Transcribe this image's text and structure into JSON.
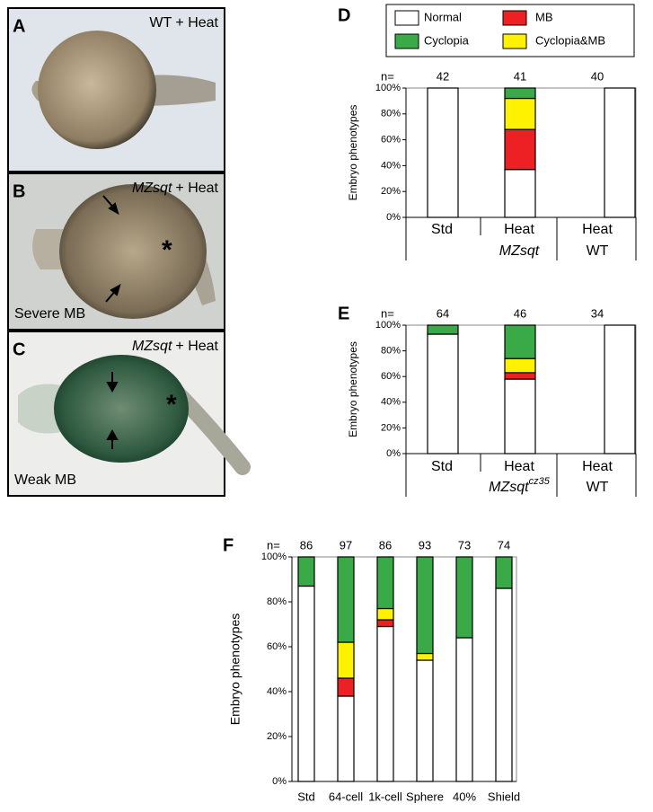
{
  "panels": [
    {
      "letter": "A",
      "label": "WT + Heat"
    },
    {
      "letter": "B",
      "genotype": "MZsqt",
      "label": "+ Heat",
      "caption": "Severe MB",
      "marker": "*"
    },
    {
      "letter": "C",
      "genotype": "MZsqt",
      "label": "+ Heat",
      "caption": "Weak MB",
      "marker": "*"
    }
  ],
  "chart_data": [
    {
      "type": "stacked_bar",
      "panel": "D",
      "ylabel": "Embryo phenotypes",
      "n_label": "n=",
      "n": [
        42,
        41,
        40
      ],
      "categories": [
        "Std",
        "Heat",
        "Heat"
      ],
      "group_labels": [
        "MZsqt",
        "WT"
      ],
      "series": [
        {
          "name": "Normal",
          "color": "#ffffff",
          "values": [
            100,
            37,
            100
          ]
        },
        {
          "name": "MB",
          "color": "#ed2124",
          "values": [
            0,
            31,
            0
          ]
        },
        {
          "name": "Cyclopia&MB",
          "color": "#fff200",
          "values": [
            0,
            24,
            0
          ]
        },
        {
          "name": "Cyclopia",
          "color": "#3aaa48",
          "values": [
            0,
            8,
            0
          ]
        }
      ],
      "ylim": [
        0,
        100
      ],
      "yticks": [
        {
          "value": 0,
          "label": "0%"
        },
        {
          "value": 20,
          "label": "20%"
        },
        {
          "value": 40,
          "label": "40%"
        },
        {
          "value": 60,
          "label": "60%"
        },
        {
          "value": 80,
          "label": "80%"
        },
        {
          "value": 100,
          "label": "100%"
        }
      ]
    },
    {
      "type": "stacked_bar",
      "panel": "E",
      "ylabel": "Embryo phenotypes",
      "n_label": "n=",
      "n": [
        64,
        46,
        34
      ],
      "categories": [
        "Std",
        "Heat",
        "Heat"
      ],
      "group_labels": [
        {
          "text": "MZsqt",
          "sup": "cz35"
        },
        "WT"
      ],
      "series": [
        {
          "color": "#ffffff",
          "values": [
            93,
            58,
            100
          ]
        },
        {
          "color": "#ed2124",
          "values": [
            0,
            5,
            0
          ]
        },
        {
          "color": "#fff200",
          "values": [
            0,
            11,
            0
          ]
        },
        {
          "color": "#3aaa48",
          "values": [
            7,
            26,
            0
          ]
        }
      ],
      "ylim": [
        0,
        100
      ],
      "yticks": [
        {
          "value": 0,
          "label": "0%"
        },
        {
          "value": 20,
          "label": "20%"
        },
        {
          "value": 40,
          "label": "40%"
        },
        {
          "value": 60,
          "label": "60%"
        },
        {
          "value": 80,
          "label": "80%"
        },
        {
          "value": 100,
          "label": "100%"
        }
      ]
    },
    {
      "type": "stacked_bar",
      "panel": "F",
      "ylabel": "Embryo phenotypes",
      "n_label": "n=",
      "n": [
        86,
        97,
        86,
        93,
        73,
        74
      ],
      "categories": [
        "Std",
        "64-cell",
        "1k-cell",
        "Sphere",
        "40%",
        "Shield"
      ],
      "series": [
        {
          "color": "#ffffff",
          "values": [
            87,
            38,
            69,
            54,
            64,
            86
          ]
        },
        {
          "color": "#ed2124",
          "values": [
            0,
            8,
            3,
            0,
            0,
            0
          ]
        },
        {
          "color": "#fff200",
          "values": [
            0,
            16,
            5,
            3,
            0,
            0
          ]
        },
        {
          "color": "#3aaa48",
          "values": [
            13,
            38,
            23,
            43,
            36,
            14
          ]
        }
      ],
      "ylim": [
        0,
        100
      ],
      "yticks": [
        {
          "value": 0,
          "label": "0%"
        },
        {
          "value": 20,
          "label": "20%"
        },
        {
          "value": 40,
          "label": "40%"
        },
        {
          "value": 60,
          "label": "60%"
        },
        {
          "value": 80,
          "label": "80%"
        },
        {
          "value": 100,
          "label": "100%"
        }
      ]
    }
  ]
}
